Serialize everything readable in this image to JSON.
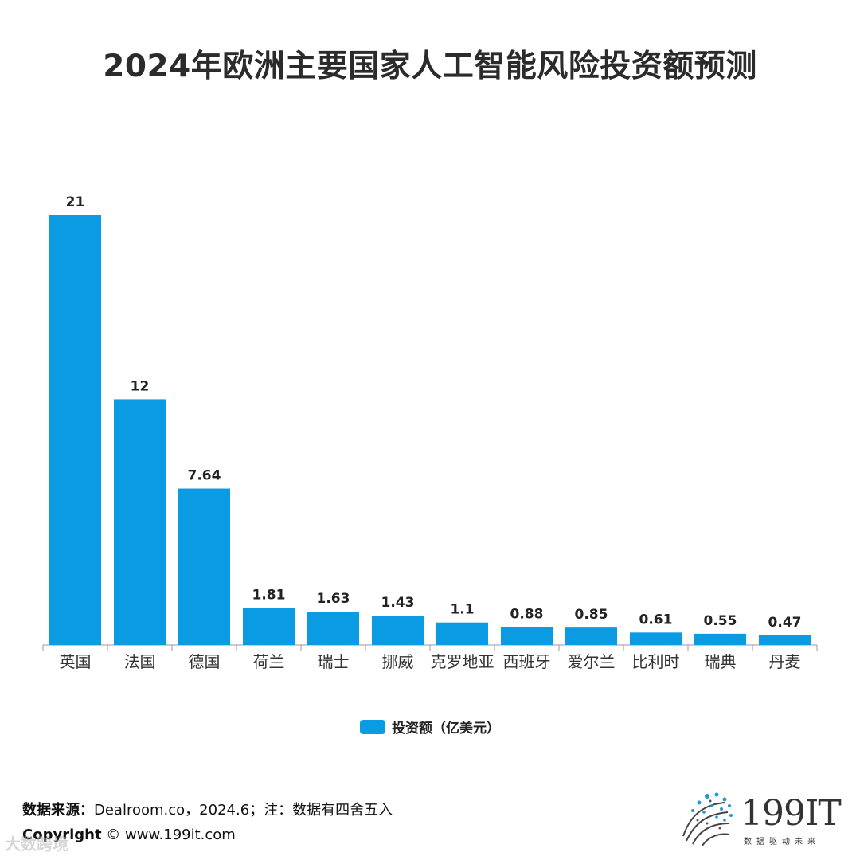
{
  "chart_data": {
    "type": "bar",
    "title": "2024年欧洲主要国家人工智能风险投资额预测",
    "categories": [
      "英国",
      "法国",
      "德国",
      "荷兰",
      "瑞士",
      "挪威",
      "克罗地亚",
      "西班牙",
      "爱尔兰",
      "比利时",
      "瑞典",
      "丹麦"
    ],
    "series": [
      {
        "name": "投资额（亿美元）",
        "values": [
          21,
          12,
          7.64,
          1.81,
          1.63,
          1.43,
          1.1,
          0.88,
          0.85,
          0.61,
          0.55,
          0.47
        ],
        "labels": [
          "21",
          "12",
          "7.64",
          "1.81",
          "1.63",
          "1.43",
          "1.1",
          "0.88",
          "0.85",
          "0.61",
          "0.55",
          "0.47"
        ]
      }
    ],
    "ylim": [
      0,
      21
    ],
    "grid": false,
    "legend_position": "bottom-center",
    "bar_color": "#0b9be3"
  },
  "footer": {
    "source_label": "数据来源：",
    "source_text": "Dealroom.co，2024.6；注：数据有四舍五入",
    "copyright_label": "Copyright",
    "copyright_text": "© www.199it.com"
  },
  "watermark": "大数跨境",
  "logo": {
    "text": "199IT",
    "tagline": "数据驱动未来"
  }
}
